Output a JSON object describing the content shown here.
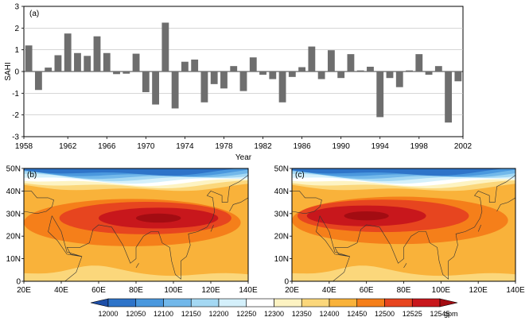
{
  "chart_data": [
    {
      "type": "bar",
      "panel_label": "(a)",
      "ylabel": "SAHI",
      "xlabel": "Year",
      "ylim": [
        -3,
        3
      ],
      "yticks": [
        3,
        2,
        1,
        0,
        -1,
        -2,
        -3
      ],
      "xlim": [
        1958,
        2002
      ],
      "xticks": [
        1958,
        1962,
        1966,
        1970,
        1974,
        1978,
        1982,
        1986,
        1990,
        1994,
        1998,
        2002
      ],
      "grid": "horizontal",
      "bar_color": "#6e6e6e",
      "x": [
        1958,
        1959,
        1960,
        1961,
        1962,
        1963,
        1964,
        1965,
        1966,
        1967,
        1968,
        1969,
        1970,
        1971,
        1972,
        1973,
        1974,
        1975,
        1976,
        1977,
        1978,
        1979,
        1980,
        1981,
        1982,
        1983,
        1984,
        1985,
        1986,
        1987,
        1988,
        1989,
        1990,
        1991,
        1992,
        1993,
        1994,
        1995,
        1996,
        1997,
        1998,
        1999,
        2000,
        2001,
        2002
      ],
      "values": [
        1.2,
        -0.85,
        0.18,
        0.75,
        1.75,
        0.85,
        0.72,
        1.62,
        0.85,
        -0.12,
        -0.1,
        0.82,
        -0.95,
        -1.52,
        2.25,
        -1.7,
        0.45,
        0.55,
        -1.42,
        -0.58,
        -0.78,
        0.25,
        -0.9,
        0.65,
        -0.15,
        -0.35,
        -1.42,
        -0.25,
        0.2,
        1.15,
        -0.35,
        0.98,
        -0.3,
        0.8,
        0.05,
        0.22,
        -2.1,
        -0.3,
        -0.72,
        0.05,
        0.8,
        -0.15,
        0.25,
        -2.35,
        -0.45
      ]
    },
    {
      "type": "heatmap",
      "panel_label": "(b)",
      "xticks": [
        "20E",
        "40E",
        "60E",
        "80E",
        "100E",
        "120E",
        "140E"
      ],
      "yticks": [
        "50N",
        "40N",
        "30N",
        "20N",
        "10N",
        "0"
      ],
      "lon_range": [
        20,
        140
      ],
      "lat_range": [
        0,
        50
      ],
      "core_center": [
        92,
        28
      ]
    },
    {
      "type": "heatmap",
      "panel_label": "(c)",
      "xticks": [
        "20E",
        "40E",
        "60E",
        "80E",
        "100E",
        "120E",
        "140E"
      ],
      "yticks": [
        "50N",
        "40N",
        "30N",
        "20N",
        "10N",
        "0"
      ],
      "lon_range": [
        20,
        140
      ],
      "lat_range": [
        0,
        50
      ],
      "core_center": [
        60,
        29
      ]
    }
  ],
  "colorbar": {
    "levels": [
      12000,
      12050,
      12100,
      12150,
      12200,
      12250,
      12300,
      12350,
      12400,
      12450,
      12500,
      12525,
      12545
    ],
    "labels": [
      "12000",
      "12050",
      "12100",
      "12150",
      "12200",
      "12250",
      "12300",
      "12350",
      "12400",
      "12450",
      "12500",
      "12525",
      "12545"
    ],
    "colors": [
      "#1e4fa8",
      "#2e74c9",
      "#4a98de",
      "#72b8ea",
      "#a4d8f3",
      "#d4f0fb",
      "#ffffff",
      "#fdf3c2",
      "#fbd77b",
      "#f9b23a",
      "#f57f1a",
      "#e7451f",
      "#c8171c",
      "#a30c12"
    ],
    "unit": "gpm"
  }
}
